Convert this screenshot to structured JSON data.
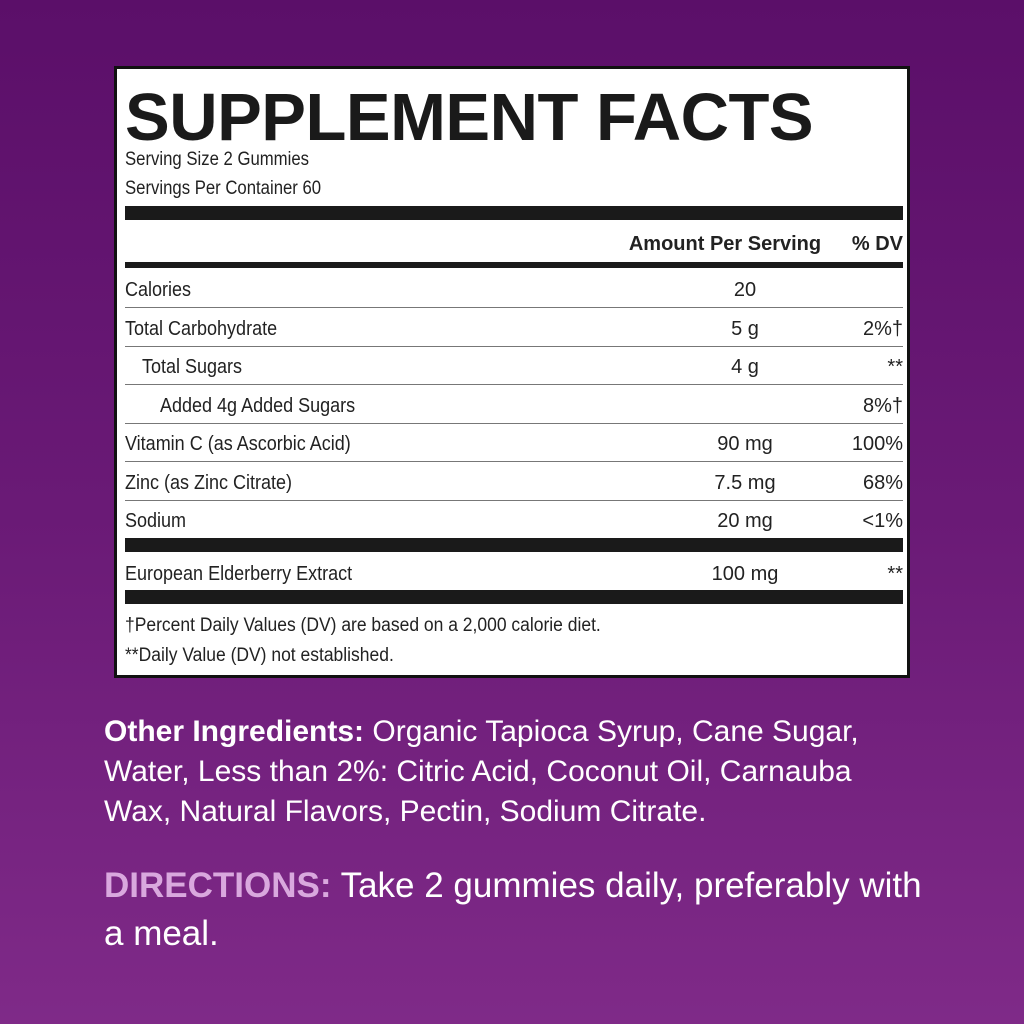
{
  "label": {
    "title": "SUPPLEMENT FACTS",
    "serving_size": "Serving Size 2 Gummies",
    "servings_per_container": "Servings Per Container 60",
    "header_amount": "Amount Per Serving",
    "header_dv": "% DV",
    "rows": [
      {
        "name": "Calories",
        "amount": "20",
        "dv": ""
      },
      {
        "name": "Total Carbohydrate",
        "amount": "5 g",
        "dv": "2%†"
      },
      {
        "name": "Total Sugars",
        "amount": "4 g",
        "dv": "**"
      },
      {
        "name": "Added 4g Added Sugars",
        "amount": "",
        "dv": "8%†"
      },
      {
        "name": "Vitamin C (as Ascorbic Acid)",
        "amount": "90 mg",
        "dv": "100%"
      },
      {
        "name": "Zinc (as Zinc Citrate)",
        "amount": "7.5 mg",
        "dv": "68%"
      },
      {
        "name": "Sodium",
        "amount": "20 mg",
        "dv": "<1%"
      }
    ],
    "extract": {
      "name": "European Elderberry Extract",
      "amount": "100 mg",
      "dv": "**"
    },
    "footnote_1": "†Percent Daily Values (DV) are based on a 2,000 calorie diet.",
    "footnote_2": "**Daily Value (DV) not established."
  },
  "other_ingredients": {
    "label": "Other Ingredients:",
    "text": " Organic Tapioca Syrup, Cane Sugar, Water, Less than 2%: Citric Acid, Coconut Oil, Carnauba Wax, Natural Flavors, Pectin, Sodium Citrate."
  },
  "directions": {
    "label": "DIRECTIONS:",
    "text": " Take 2 gummies daily, preferably with a meal."
  },
  "colors": {
    "background": "#6a1a76",
    "directions_label": "#d9a8de"
  }
}
